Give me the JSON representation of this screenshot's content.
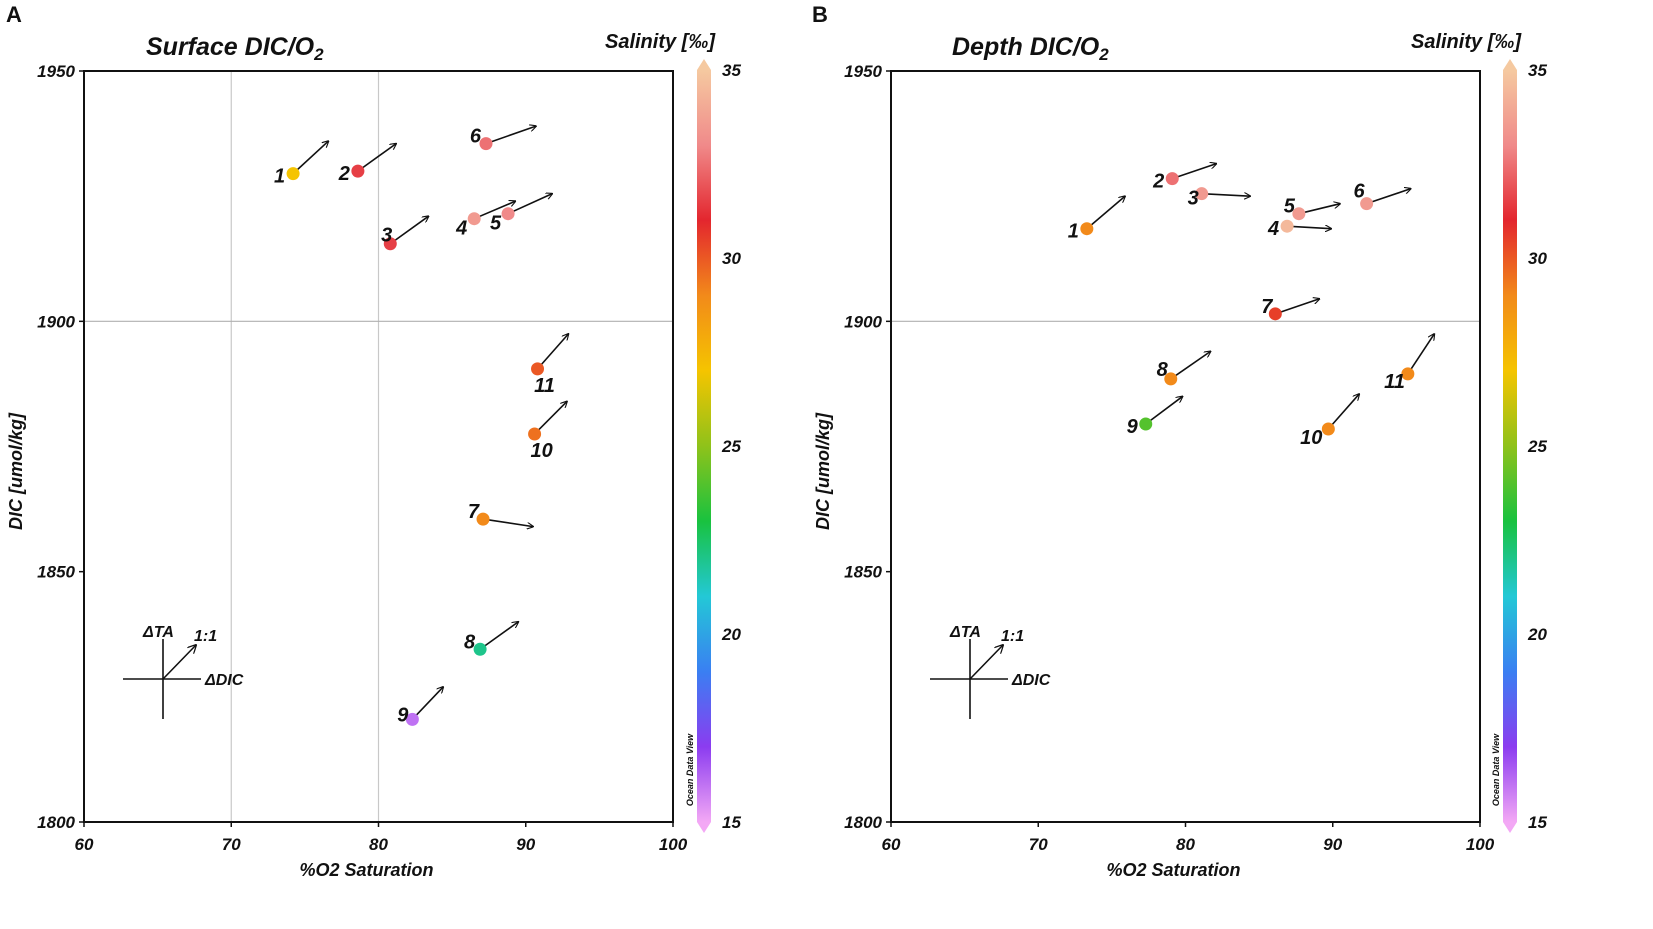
{
  "figure": {
    "colorbar_title": "Salinity [‰]",
    "colorbar_ticks": [
      "35",
      "30",
      "25",
      "20",
      "15"
    ],
    "colorbar_range": [
      15,
      35
    ],
    "colorbar_credit": "Ocean Data View",
    "colorbar_stops": [
      "#f3a8f5",
      "#8b3cf0",
      "#3a7ff2",
      "#23c8d6",
      "#19c23f",
      "#8fc21a",
      "#f5c400",
      "#f28a1a",
      "#e3262e",
      "#f08a8a",
      "#f5c9a0"
    ],
    "legend": {
      "ta": "ΔTA",
      "one_to_one": "1:1",
      "dic": "ΔDIC"
    }
  },
  "chart_data": [
    {
      "type": "scatter",
      "panel": "A",
      "title": "Surface DIC/O",
      "title_sub": "2",
      "xlabel": "%O2 Saturation",
      "ylabel": "DIC [umol/kg]",
      "xlim": [
        60,
        100
      ],
      "ylim": [
        1800,
        1950
      ],
      "xticks": [
        "60",
        "70",
        "80",
        "90",
        "100"
      ],
      "yticks": [
        "1800",
        "1850",
        "1900",
        "1950"
      ],
      "grid": {
        "x": [
          70,
          80
        ],
        "y": [
          1900
        ]
      },
      "points": [
        {
          "label": "1",
          "x": 74.2,
          "y": 1929.5,
          "salinity": 27.0,
          "arrow_dx": 2.4,
          "arrow_dy": 6.5
        },
        {
          "label": "2",
          "x": 78.6,
          "y": 1930.0,
          "salinity": 31.5,
          "arrow_dx": 2.6,
          "arrow_dy": 5.5
        },
        {
          "label": "3",
          "x": 80.8,
          "y": 1915.5,
          "salinity": 31.5,
          "arrow_dx": 2.6,
          "arrow_dy": 5.5
        },
        {
          "label": "4",
          "x": 86.5,
          "y": 1920.5,
          "salinity": 33.5,
          "arrow_dx": 2.8,
          "arrow_dy": 3.5
        },
        {
          "label": "5",
          "x": 88.8,
          "y": 1921.5,
          "salinity": 33.0,
          "arrow_dx": 3.0,
          "arrow_dy": 4.0
        },
        {
          "label": "6",
          "x": 87.3,
          "y": 1935.5,
          "salinity": 32.5,
          "arrow_dx": 3.4,
          "arrow_dy": 3.5
        },
        {
          "label": "7",
          "x": 87.1,
          "y": 1860.5,
          "salinity": 29.0,
          "arrow_dx": 3.4,
          "arrow_dy": -1.5
        },
        {
          "label": "8",
          "x": 86.9,
          "y": 1834.5,
          "salinity": 22.0,
          "arrow_dx": 2.6,
          "arrow_dy": 5.5
        },
        {
          "label": "9",
          "x": 82.3,
          "y": 1820.5,
          "salinity": 16.0,
          "arrow_dx": 2.1,
          "arrow_dy": 6.5
        },
        {
          "label": "10",
          "x": 90.6,
          "y": 1877.5,
          "salinity": 29.5,
          "arrow_dx": 2.2,
          "arrow_dy": 6.5
        },
        {
          "label": "11",
          "x": 90.8,
          "y": 1890.5,
          "salinity": 30.0,
          "arrow_dx": 2.1,
          "arrow_dy": 7.0
        }
      ]
    },
    {
      "type": "scatter",
      "panel": "B",
      "title": "Depth DIC/O",
      "title_sub": "2",
      "xlabel": "%O2 Saturation",
      "ylabel": "DIC [umol/kg]",
      "xlim": [
        60,
        100
      ],
      "ylim": [
        1800,
        1950
      ],
      "xticks": [
        "60",
        "70",
        "80",
        "90",
        "100"
      ],
      "yticks": [
        "1800",
        "1850",
        "1900",
        "1950"
      ],
      "grid": {
        "x": [],
        "y": [
          1900
        ]
      },
      "points": [
        {
          "label": "1",
          "x": 73.3,
          "y": 1918.5,
          "salinity": 29.0,
          "arrow_dx": 2.6,
          "arrow_dy": 6.5
        },
        {
          "label": "2",
          "x": 79.1,
          "y": 1928.5,
          "salinity": 32.5,
          "arrow_dx": 3.0,
          "arrow_dy": 3.0
        },
        {
          "label": "3",
          "x": 81.1,
          "y": 1925.5,
          "salinity": 33.5,
          "arrow_dx": 3.3,
          "arrow_dy": -0.5
        },
        {
          "label": "4",
          "x": 86.9,
          "y": 1919.0,
          "salinity": 34.5,
          "arrow_dx": 3.0,
          "arrow_dy": -0.5
        },
        {
          "label": "5",
          "x": 87.7,
          "y": 1921.5,
          "salinity": 33.5,
          "arrow_dx": 2.8,
          "arrow_dy": 2.0
        },
        {
          "label": "6",
          "x": 92.3,
          "y": 1923.5,
          "salinity": 33.5,
          "arrow_dx": 3.0,
          "arrow_dy": 3.0
        },
        {
          "label": "7",
          "x": 86.1,
          "y": 1901.5,
          "salinity": 30.5,
          "arrow_dx": 3.0,
          "arrow_dy": 3.0
        },
        {
          "label": "8",
          "x": 79.0,
          "y": 1888.5,
          "salinity": 29.0,
          "arrow_dx": 2.7,
          "arrow_dy": 5.5
        },
        {
          "label": "9",
          "x": 77.3,
          "y": 1879.5,
          "salinity": 24.0,
          "arrow_dx": 2.5,
          "arrow_dy": 5.5
        },
        {
          "label": "10",
          "x": 89.7,
          "y": 1878.5,
          "salinity": 29.0,
          "arrow_dx": 2.1,
          "arrow_dy": 7.0
        },
        {
          "label": "11",
          "x": 95.1,
          "y": 1889.5,
          "salinity": 29.0,
          "arrow_dx": 1.8,
          "arrow_dy": 8.0
        }
      ]
    }
  ]
}
